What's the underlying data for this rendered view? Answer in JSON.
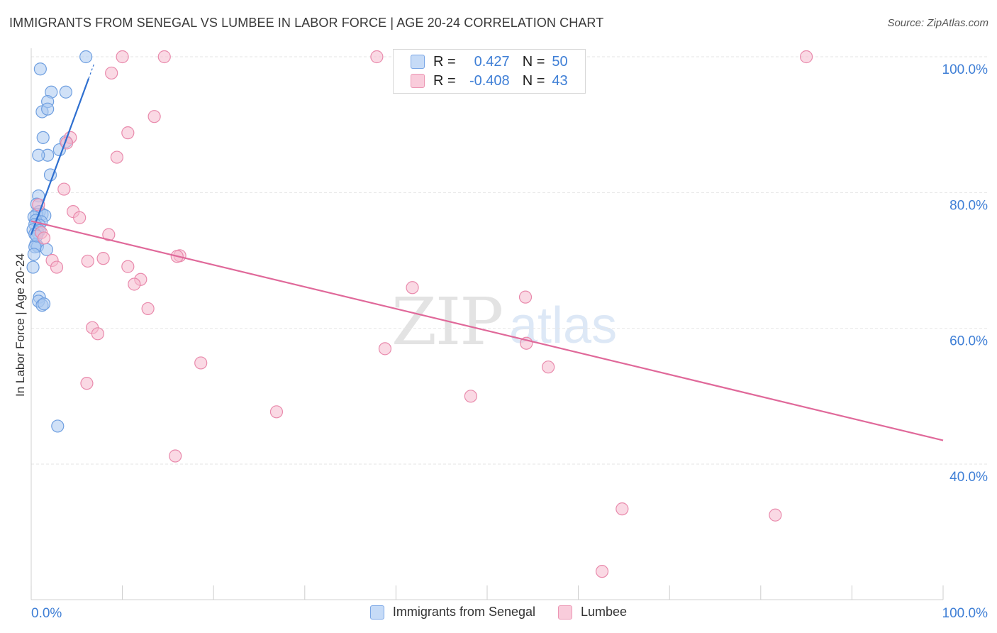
{
  "title": "IMMIGRANTS FROM SENEGAL VS LUMBEE IN LABOR FORCE | AGE 20-24 CORRELATION CHART",
  "source": "Source: ZipAtlas.com",
  "watermark": {
    "zip": "ZIP",
    "atlas": "atlas"
  },
  "legend": {
    "rows": [
      {
        "r_label": "R =",
        "r_value": "0.427",
        "n_label": "N =",
        "n_value": "50"
      },
      {
        "r_label": "R =",
        "r_value": "-0.408",
        "n_label": "N =",
        "n_value": "43"
      }
    ]
  },
  "bottom_legend": {
    "items": [
      {
        "label": "Immigrants from Senegal"
      },
      {
        "label": "Lumbee"
      }
    ]
  },
  "colors": {
    "blue_fill": "#a9c8f0",
    "blue_stroke": "#6f9fe0",
    "blue_line": "#2e6fd0",
    "pink_fill": "#f6b9cd",
    "pink_stroke": "#e98aac",
    "pink_line": "#e0699a",
    "tick_label": "#3f7fd6",
    "grid": "#e6e6e6"
  },
  "chart_data": {
    "type": "scatter",
    "title": "IMMIGRANTS FROM SENEGAL VS LUMBEE IN LABOR FORCE | AGE 20-24 CORRELATION CHART",
    "xlabel": "",
    "ylabel": "In Labor Force | Age 20-24",
    "xlim": [
      0,
      100
    ],
    "ylim": [
      20,
      103
    ],
    "x_tick_labels": [
      "0.0%",
      "100.0%"
    ],
    "y_ticks": [
      40,
      60,
      80,
      100
    ],
    "y_tick_labels": [
      "40.0%",
      "60.0%",
      "80.0%",
      "100.0%"
    ],
    "grid": true,
    "series": [
      {
        "name": "Immigrants from Senegal",
        "color": "#6f9fe0",
        "points": [
          [
            6.0,
            100.0
          ],
          [
            1.0,
            98.2
          ],
          [
            2.2,
            94.8
          ],
          [
            3.8,
            94.8
          ],
          [
            1.8,
            93.4
          ],
          [
            1.2,
            91.9
          ],
          [
            1.8,
            92.3
          ],
          [
            1.3,
            88.1
          ],
          [
            1.8,
            85.5
          ],
          [
            0.8,
            85.5
          ],
          [
            3.1,
            86.3
          ],
          [
            3.8,
            87.5
          ],
          [
            2.1,
            82.6
          ],
          [
            0.8,
            79.5
          ],
          [
            0.6,
            78.3
          ],
          [
            0.9,
            77.2
          ],
          [
            1.2,
            76.8
          ],
          [
            0.6,
            76.8
          ],
          [
            1.5,
            76.6
          ],
          [
            0.3,
            76.4
          ],
          [
            0.5,
            75.9
          ],
          [
            1.1,
            75.7
          ],
          [
            0.9,
            75.2
          ],
          [
            0.4,
            75.3
          ],
          [
            0.2,
            74.5
          ],
          [
            0.7,
            74.1
          ],
          [
            0.9,
            74.4
          ],
          [
            0.4,
            73.9
          ],
          [
            0.5,
            72.4
          ],
          [
            0.7,
            72.1
          ],
          [
            1.7,
            71.6
          ],
          [
            0.4,
            72.0
          ],
          [
            0.3,
            70.9
          ],
          [
            0.2,
            69.0
          ],
          [
            0.9,
            64.6
          ],
          [
            0.8,
            64.0
          ],
          [
            1.2,
            63.4
          ],
          [
            1.4,
            63.6
          ],
          [
            2.9,
            45.6
          ],
          [
            0.6,
            73.6
          ]
        ],
        "trend": {
          "x": [
            0.0,
            6.3
          ],
          "y": [
            73.8,
            96.8
          ]
        }
      },
      {
        "name": "Lumbee",
        "color": "#e98aac",
        "points": [
          [
            10.0,
            100.0
          ],
          [
            14.6,
            100.0
          ],
          [
            37.9,
            100.0
          ],
          [
            85.0,
            100.0
          ],
          [
            8.8,
            97.6
          ],
          [
            13.5,
            91.2
          ],
          [
            10.6,
            88.8
          ],
          [
            4.3,
            88.1
          ],
          [
            3.9,
            87.3
          ],
          [
            9.4,
            85.2
          ],
          [
            3.6,
            80.5
          ],
          [
            4.6,
            77.2
          ],
          [
            5.3,
            76.3
          ],
          [
            0.8,
            78.2
          ],
          [
            1.1,
            74.1
          ],
          [
            1.4,
            73.3
          ],
          [
            8.5,
            73.8
          ],
          [
            16.3,
            70.7
          ],
          [
            16.0,
            70.6
          ],
          [
            7.9,
            70.3
          ],
          [
            6.2,
            69.9
          ],
          [
            2.3,
            70.0
          ],
          [
            2.8,
            69.0
          ],
          [
            10.6,
            69.1
          ],
          [
            12.0,
            67.2
          ],
          [
            11.3,
            66.5
          ],
          [
            41.8,
            66.0
          ],
          [
            54.2,
            64.6
          ],
          [
            12.8,
            62.9
          ],
          [
            6.7,
            60.1
          ],
          [
            7.3,
            59.2
          ],
          [
            54.3,
            57.8
          ],
          [
            38.8,
            57.0
          ],
          [
            56.7,
            54.3
          ],
          [
            18.6,
            54.9
          ],
          [
            6.1,
            51.9
          ],
          [
            48.2,
            50.0
          ],
          [
            26.9,
            47.7
          ],
          [
            15.8,
            41.2
          ],
          [
            64.8,
            33.4
          ],
          [
            81.6,
            32.5
          ],
          [
            62.6,
            24.2
          ]
        ],
        "trend": {
          "x": [
            0.0,
            100.0
          ],
          "y": [
            75.8,
            43.5
          ]
        }
      }
    ]
  }
}
